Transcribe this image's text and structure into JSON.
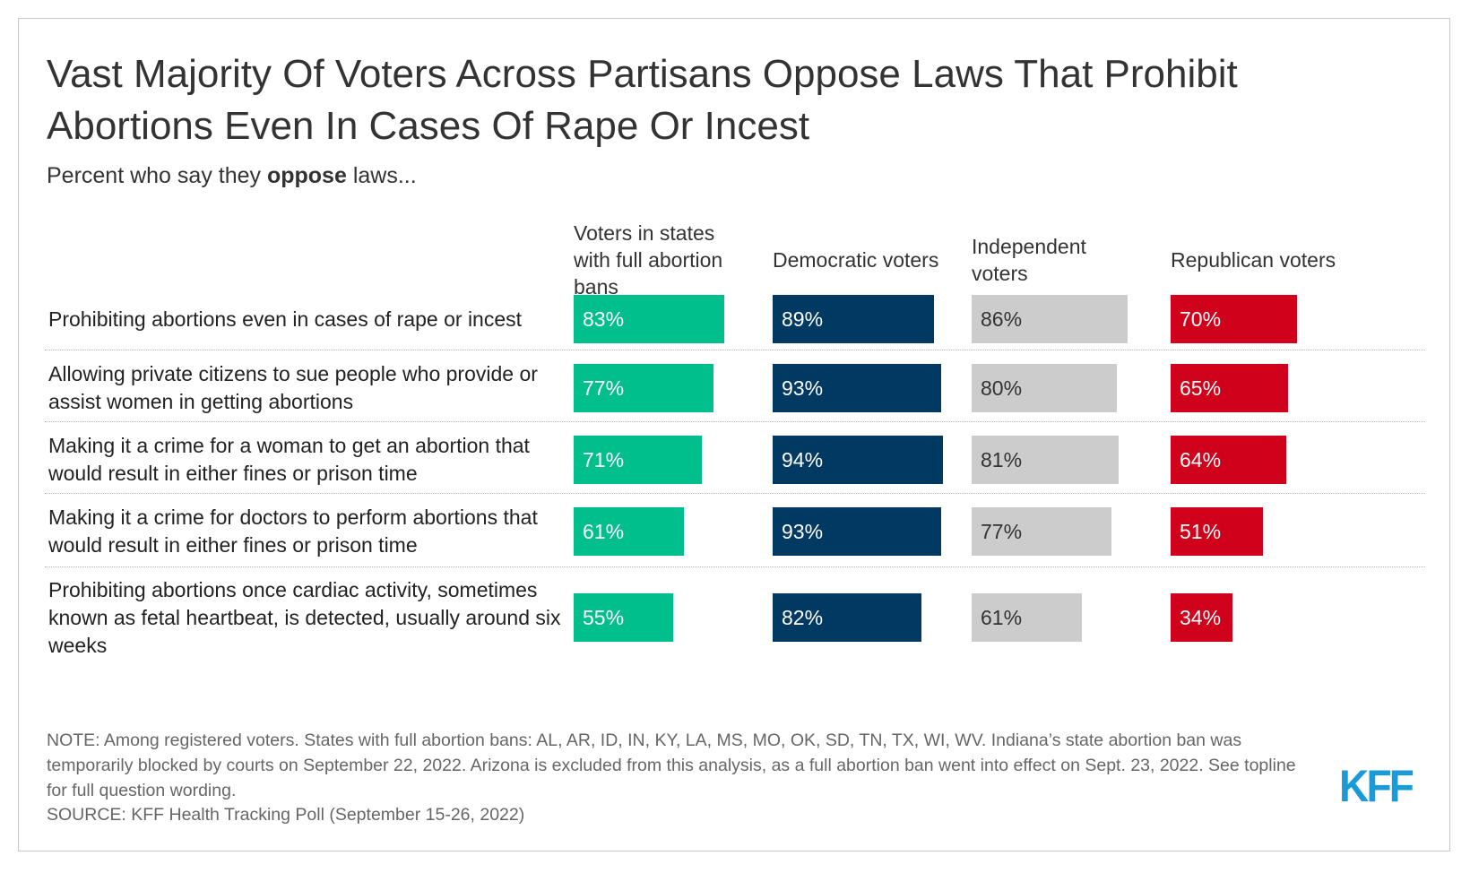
{
  "title": "Vast Majority Of Voters Across Partisans Oppose Laws That Prohibit Abortions Even In Cases Of Rape Or Incest",
  "subtitle": {
    "pre": "Percent who say they ",
    "bold": "oppose",
    "post": " laws..."
  },
  "colors": {
    "series": [
      "#00bf8c",
      "#003a63",
      "#cccccc",
      "#d0021b"
    ],
    "label_text": [
      "#ffffff",
      "#ffffff",
      "#333333",
      "#ffffff"
    ],
    "logo": "#1a9ad6"
  },
  "note": "NOTE: Among registered voters. States with full abortion bans: AL, AR, ID, IN, KY, LA, MS, MO, OK, SD, TN, TX, WI, WV. Indiana’s state abortion ban was temporarily blocked by courts on September 22, 2022. Arizona is excluded from this analysis, as a full abortion ban went into effect on Sept. 23, 2022. See topline for full question wording.",
  "source": "SOURCE: KFF Health Tracking Poll (September 15-26, 2022)",
  "logo": "KFF",
  "chart_data": {
    "type": "bar",
    "title": "Vast Majority Of Voters Across Partisans Oppose Laws That Prohibit Abortions Even In Cases Of Rape Or Incest",
    "subtitle": "Percent who say they oppose laws...",
    "categories": [
      "Prohibiting abortions even in cases of rape or incest",
      "Allowing private citizens to sue people who provide or assist women in getting abortions",
      "Making it a crime for a woman to get an abortion that would result in either fines or prison time",
      "Making it a crime for doctors to perform abortions that would result in either fines or prison time",
      "Prohibiting abortions once cardiac activity, sometimes known as fetal heartbeat, is detected, usually around six weeks"
    ],
    "series": [
      {
        "name": "Voters in states with full abortion bans",
        "values": [
          83,
          77,
          71,
          61,
          55
        ]
      },
      {
        "name": "Democratic voters",
        "values": [
          89,
          93,
          94,
          93,
          82
        ]
      },
      {
        "name": "Independent voters",
        "values": [
          86,
          80,
          81,
          77,
          61
        ]
      },
      {
        "name": "Republican voters",
        "values": [
          70,
          65,
          64,
          51,
          34
        ]
      }
    ],
    "value_suffix": "%",
    "ylim": [
      0,
      100
    ],
    "grid": false,
    "legend": "column headers"
  }
}
